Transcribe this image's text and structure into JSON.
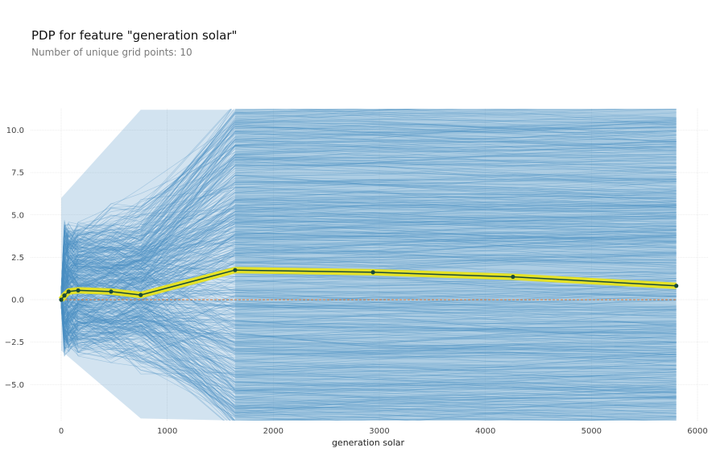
{
  "chart_data": {
    "type": "line",
    "title": "PDP for feature \"generation solar\"",
    "subtitle": "Number of unique grid points: 10",
    "xlabel": "generation solar",
    "ylabel": "",
    "xlim": [
      -80,
      6000
    ],
    "ylim": [
      -7.2,
      11.2
    ],
    "x_ticks": [
      0,
      1000,
      2000,
      3000,
      4000,
      5000,
      6000
    ],
    "y_ticks": [
      -5.0,
      -2.5,
      0.0,
      2.5,
      5.0,
      7.5,
      10.0
    ],
    "grid": true,
    "grid_points": [
      0,
      30,
      70,
      160,
      470,
      750,
      1640,
      2940,
      4260,
      5800
    ],
    "pdp_values": [
      0.0,
      0.25,
      0.48,
      0.55,
      0.48,
      0.28,
      1.75,
      1.62,
      1.35,
      0.82
    ],
    "reference_line": 0.0,
    "colors": {
      "ice_lines": "#4a90c2",
      "pdp_line": "#1a4a3a",
      "pdp_band": "#e8e31c",
      "pdp_points": "#1a4a3a",
      "zero_line": "#e07b39"
    }
  }
}
